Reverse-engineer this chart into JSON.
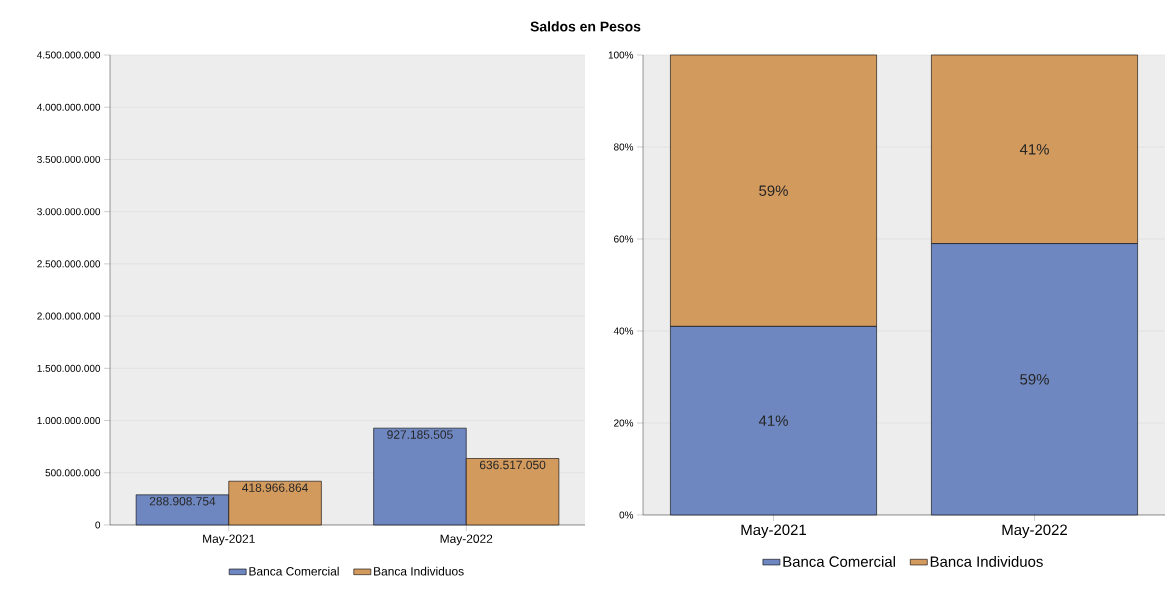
{
  "chart_data": [
    {
      "type": "bar",
      "title": "Saldos en Pesos",
      "categories": [
        "May-2021",
        "May-2022"
      ],
      "series": [
        {
          "name": "Banca Comercial",
          "color": "#6f87c0",
          "values": [
            288908754,
            927185505
          ],
          "value_labels": [
            "288.908.754",
            "927.185.505"
          ]
        },
        {
          "name": "Banca Individuos",
          "color": "#d39a5e",
          "values": [
            418966864,
            636517050
          ],
          "value_labels": [
            "418.966.864",
            "636.517.050"
          ]
        }
      ],
      "ylim": [
        0,
        4500000000
      ],
      "yticks": [
        {
          "value": 0,
          "label": "0"
        },
        {
          "value": 500000000,
          "label": "500.000.000"
        },
        {
          "value": 1000000000,
          "label": "1.000.000.000"
        },
        {
          "value": 1500000000,
          "label": "1.500.000.000"
        },
        {
          "value": 2000000000,
          "label": "2.000.000.000"
        },
        {
          "value": 2500000000,
          "label": "2.500.000.000"
        },
        {
          "value": 3000000000,
          "label": "3.000.000.000"
        },
        {
          "value": 3500000000,
          "label": "3.500.000.000"
        },
        {
          "value": 4000000000,
          "label": "4.000.000.000"
        },
        {
          "value": 4500000000,
          "label": "4.500.000.000"
        }
      ],
      "grid": "y",
      "legend": "bottom"
    },
    {
      "type": "bar",
      "stacked": true,
      "categories": [
        "May-2021",
        "May-2022"
      ],
      "series": [
        {
          "name": "Banca Comercial",
          "color": "#6f87c0",
          "values": [
            41,
            59
          ],
          "value_labels": [
            "41%",
            "59%"
          ]
        },
        {
          "name": "Banca Individuos",
          "color": "#d39a5e",
          "values": [
            59,
            41
          ],
          "value_labels": [
            "59%",
            "41%"
          ]
        }
      ],
      "ylim": [
        0,
        100
      ],
      "yticks": [
        {
          "value": 0,
          "label": "0%"
        },
        {
          "value": 20,
          "label": "20%"
        },
        {
          "value": 40,
          "label": "40%"
        },
        {
          "value": 60,
          "label": "60%"
        },
        {
          "value": 80,
          "label": "80%"
        },
        {
          "value": 100,
          "label": "100%"
        }
      ],
      "grid": "y",
      "legend": "bottom"
    }
  ]
}
